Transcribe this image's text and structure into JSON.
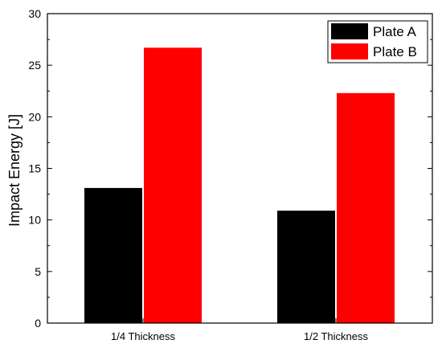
{
  "chart_data": {
    "type": "bar",
    "title": "",
    "xlabel": "",
    "ylabel": "Impact Energy [J]",
    "categories": [
      "1/4 Thickness",
      "1/2 Thickness"
    ],
    "series": [
      {
        "name": "Plate A",
        "color": "#000000",
        "values": [
          13.1,
          10.9
        ]
      },
      {
        "name": "Plate B",
        "color": "#ff0000",
        "values": [
          26.7,
          22.3
        ]
      }
    ],
    "ylim": [
      0,
      30
    ],
    "yticks": [
      0,
      5,
      10,
      15,
      20,
      25,
      30
    ],
    "y_minor_ticks": true,
    "grid": false,
    "legend_position": "top-right"
  }
}
